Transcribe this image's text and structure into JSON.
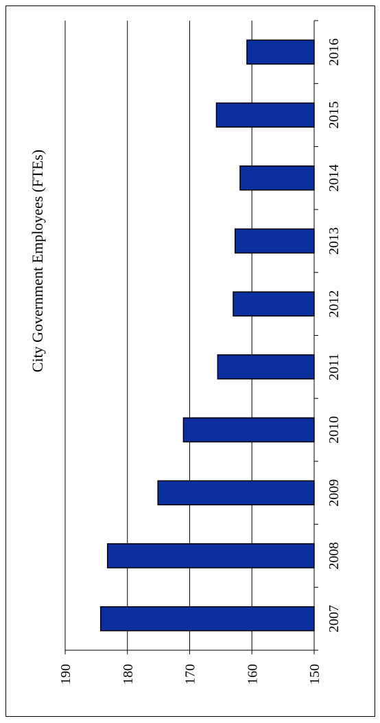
{
  "chart_data": {
    "type": "bar",
    "orientation": "rotated-90",
    "title": "City Government Employees (FTEs)",
    "categories": [
      "2007",
      "2008",
      "2009",
      "2010",
      "2011",
      "2012",
      "2013",
      "2014",
      "2015",
      "2016"
    ],
    "values": [
      184.3,
      183.2,
      175.1,
      171.0,
      165.5,
      163.0,
      162.7,
      161.9,
      165.7,
      160.8
    ],
    "ylim": [
      150,
      190
    ],
    "yticks": [
      150,
      160,
      170,
      180,
      190
    ],
    "grid": true,
    "colors": {
      "bar": "#0b2f9e",
      "bar_stroke": "#000000",
      "grid": "#000000"
    }
  }
}
